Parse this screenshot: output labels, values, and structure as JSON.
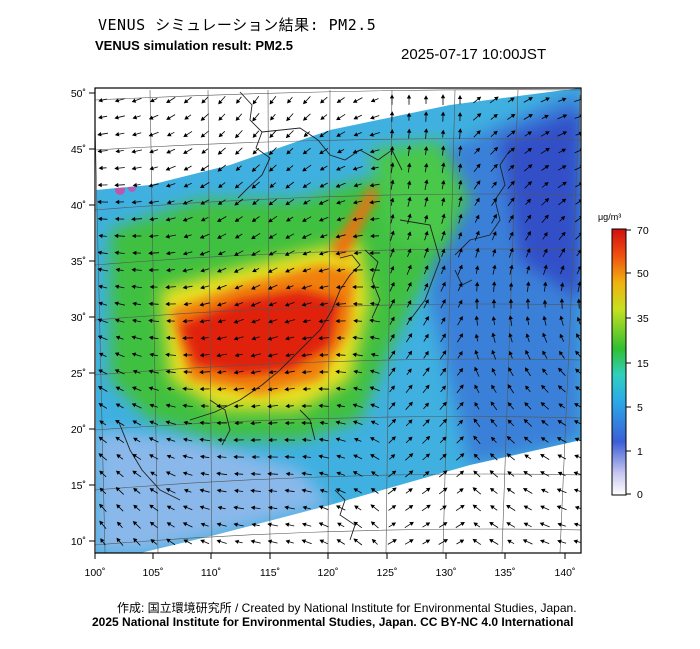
{
  "header": {
    "title_jp": "VENUS シミュレーション結果: PM2.5",
    "title_en": "VENUS simulation result: PM2.5",
    "timestamp": "2025-07-17 10:00JST"
  },
  "map": {
    "lat_labels": [
      "50˚",
      "45˚",
      "40˚",
      "35˚",
      "30˚",
      "25˚",
      "20˚",
      "15˚",
      "10˚"
    ],
    "lon_labels": [
      "100˚",
      "105˚",
      "110˚",
      "115˚",
      "120˚",
      "125˚",
      "130˚",
      "135˚",
      "140˚"
    ],
    "variable": "PM2.5",
    "field_colors": {
      "low": "#3b7bd6",
      "cyan": "#3fc8e0",
      "green": "#40c040",
      "yellow": "#e8e020",
      "orange": "#f08010",
      "red": "#e02010"
    }
  },
  "colorbar": {
    "unit": "μg/m³",
    "ticks": [
      "70",
      "50",
      "35",
      "15",
      "5",
      "1",
      "0"
    ]
  },
  "footer": {
    "credit_line": "作成: 国立環境研究所 / Created by National Institute for Environmental Studies, Japan.",
    "license_line": "2025 National Institute for Environmental Studies, Japan. CC BY-NC 4.0 International"
  }
}
